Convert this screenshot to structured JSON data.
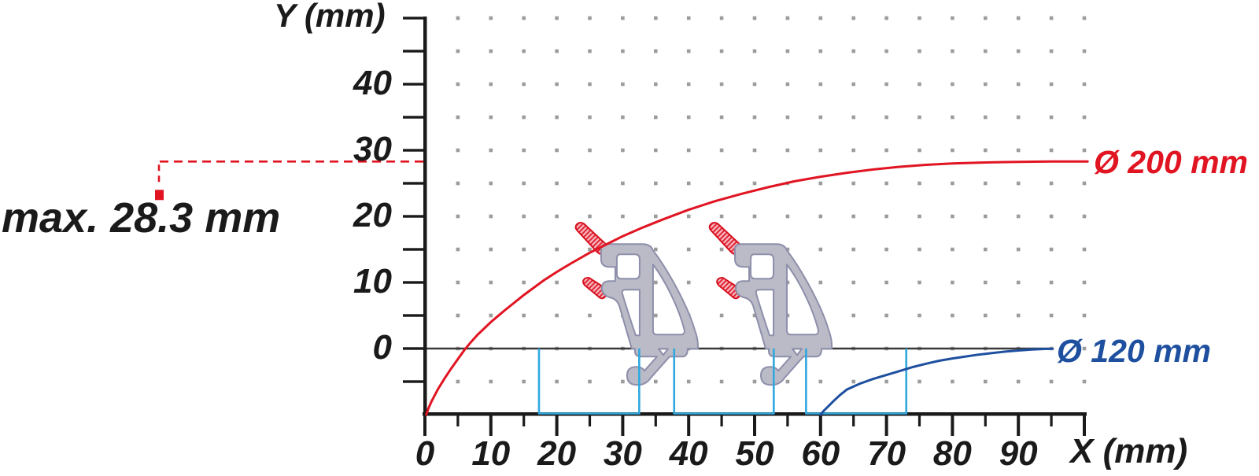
{
  "chart_data": {
    "type": "line",
    "description": "Saw blade cutting depth capacity diagram with aluminium profile cross-sections",
    "x_axis": {
      "label": "X (mm)",
      "range_mm": [
        0,
        100
      ],
      "tick_values": [
        0,
        10,
        20,
        30,
        40,
        50,
        60,
        70,
        80,
        90
      ],
      "tick_labels": [
        "0",
        "10",
        "20",
        "30",
        "40",
        "50",
        "60",
        "70",
        "80",
        "90"
      ],
      "minor_tick_step_mm": 5
    },
    "y_axis": {
      "label": "Y (mm)",
      "range_mm": [
        -10,
        50
      ],
      "tick_values": [
        0,
        10,
        20,
        30,
        40
      ],
      "tick_labels": [
        "0",
        "10",
        "20",
        "30",
        "40"
      ],
      "minor_tick_step_mm": 5
    },
    "grid": {
      "style": "dots",
      "spacing_mm": 5,
      "color": "#9c9c9c"
    },
    "zero_line": {
      "y_mm": 0,
      "color": "#3a3a3a"
    },
    "annotation": {
      "text": "max. 28.3 mm",
      "value_mm": 28.3,
      "text_color": "#1a1a1a",
      "leader_color": "#e11422"
    },
    "series": [
      {
        "name": "Ø 200 mm",
        "color": "#e11422",
        "points_mm": [
          [
            0.2,
            -10
          ],
          [
            0.6,
            -8.9
          ],
          [
            1,
            -8
          ],
          [
            2,
            -6.1
          ],
          [
            3,
            -4.5
          ],
          [
            4,
            -3
          ],
          [
            5,
            -1.6
          ],
          [
            6,
            -0.2
          ],
          [
            7,
            1
          ],
          [
            8,
            2.1
          ],
          [
            10,
            4
          ],
          [
            12,
            5.7
          ],
          [
            15,
            8.1
          ],
          [
            18,
            10.3
          ],
          [
            20,
            11.6
          ],
          [
            22,
            12.8
          ],
          [
            25,
            14.5
          ],
          [
            28,
            16
          ],
          [
            30,
            17
          ],
          [
            33,
            18.3
          ],
          [
            36,
            19.5
          ],
          [
            40,
            21
          ],
          [
            44,
            22.3
          ],
          [
            48,
            23.4
          ],
          [
            52,
            24.4
          ],
          [
            56,
            25.3
          ],
          [
            60,
            26
          ],
          [
            64,
            26.6
          ],
          [
            68,
            27.1
          ],
          [
            72,
            27.5
          ],
          [
            76,
            27.8
          ],
          [
            80,
            28
          ],
          [
            85,
            28.15
          ],
          [
            90,
            28.25
          ],
          [
            95,
            28.3
          ],
          [
            100.5,
            28.3
          ]
        ]
      },
      {
        "name": "Ø 120 mm",
        "color": "#1e509f",
        "points_mm": [
          [
            60,
            -10
          ],
          [
            60.5,
            -9.4
          ],
          [
            61,
            -8.9
          ],
          [
            62,
            -7.9
          ],
          [
            63,
            -7
          ],
          [
            64,
            -6.2
          ],
          [
            66,
            -5.3
          ],
          [
            68,
            -4.6
          ],
          [
            70,
            -4
          ],
          [
            72,
            -3.4
          ],
          [
            74,
            -2.8
          ],
          [
            76,
            -2.3
          ],
          [
            78,
            -1.85
          ],
          [
            80,
            -1.5
          ],
          [
            82,
            -1.2
          ],
          [
            84,
            -0.92
          ],
          [
            86,
            -0.68
          ],
          [
            88,
            -0.47
          ],
          [
            90,
            -0.3
          ],
          [
            92,
            -0.16
          ],
          [
            94,
            -0.06
          ],
          [
            95.2,
            -0.02
          ]
        ]
      }
    ],
    "clamp_zones": {
      "color": "#2fa8df",
      "y_range_mm": [
        -10,
        0
      ],
      "x_ranges_mm": [
        [
          17.3,
          32.5
        ],
        [
          37.8,
          52.9
        ],
        [
          57.8,
          73.0
        ]
      ]
    },
    "profiles": {
      "count": 2,
      "description": "aluminium extrusion profile cross-section with red gasket marks",
      "anchors_mm": [
        [
          26.6,
          15.8
        ],
        [
          46.9,
          15.8
        ]
      ],
      "fill": "#babbc6",
      "outline": "#8d8fab",
      "gasket_stroke": "#d8101f",
      "gasket_hatch": "#e22130",
      "gasket_bg": "#f6b9c1"
    }
  }
}
